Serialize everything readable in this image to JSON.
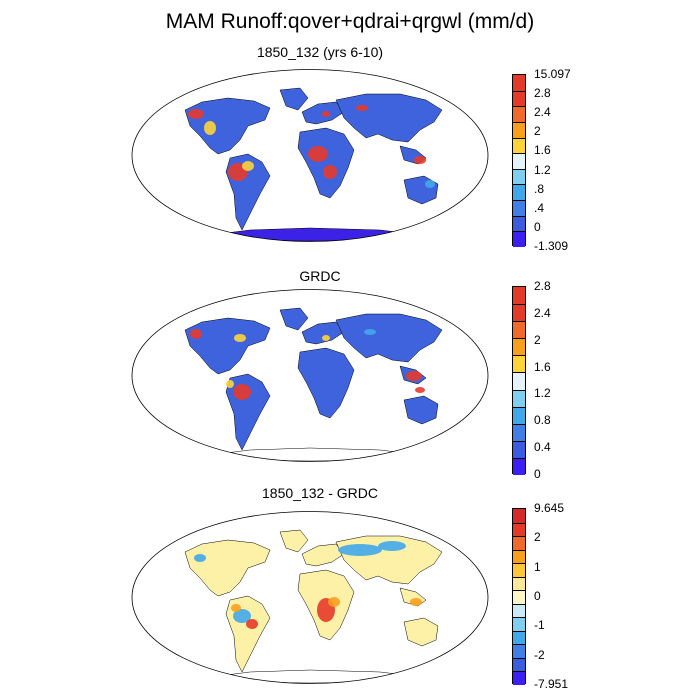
{
  "title": "MAM Runoff:qover+qdrai+qrgwl (mm/d)",
  "panels": [
    {
      "title": "1850_132 (yrs 6-10)",
      "colors": [
        "#e23b2a",
        "#e23b2a",
        "#f06a2b",
        "#f99f1e",
        "#fdd33a",
        "#e6f3fa",
        "#7fd0f0",
        "#41a8ea",
        "#3f7fe6",
        "#3a5de0",
        "#3d1ff2"
      ],
      "labels": [
        "15.097",
        "2.8",
        "2.4",
        "2",
        "1.6",
        "1.2",
        ".8",
        ".4",
        "0",
        "-1.309"
      ],
      "map": {
        "ocean": "#ffffff",
        "land": "#3f63dd",
        "wet": "#e53a2a",
        "moist": "#fdd33a",
        "dry": "#41a8ea",
        "antarctica": "#3c22e6"
      }
    },
    {
      "title": "GRDC",
      "colors": [
        "#e23b2a",
        "#e23b2a",
        "#f06a2b",
        "#f99f1e",
        "#fdd33a",
        "#e6f3fa",
        "#7fd0f0",
        "#41a8ea",
        "#3f7fe6",
        "#3a5de0",
        "#3d1ff2"
      ],
      "labels": [
        "2.8",
        "2.4",
        "2",
        "1.6",
        "1.2",
        "0.8",
        "0.4",
        "0"
      ],
      "map": {
        "ocean": "#ffffff",
        "land": "#3f63dd",
        "wet": "#e53a2a",
        "moist": "#fdd33a",
        "dry": "#41a8ea",
        "antarctica": "#ffffff"
      }
    },
    {
      "title": "1850_132 - GRDC",
      "colors": [
        "#d42a2a",
        "#e23b2a",
        "#f06a2b",
        "#f99f1e",
        "#fcc73a",
        "#fde79a",
        "#fdf7c8",
        "#cbe9f6",
        "#7fd0f0",
        "#41a8ea",
        "#3f7fe6",
        "#3a5de0",
        "#3d1ff2"
      ],
      "labels": [
        "9.645",
        "2",
        "1",
        "0",
        "-1",
        "-2",
        "-7.951"
      ],
      "map": {
        "ocean": "#ffffff",
        "land": "#fdf1a8",
        "wet": "#e53a2a",
        "moist": "#f99f1e",
        "dry": "#41a8ea",
        "antarctica": "#ffffff"
      }
    }
  ]
}
